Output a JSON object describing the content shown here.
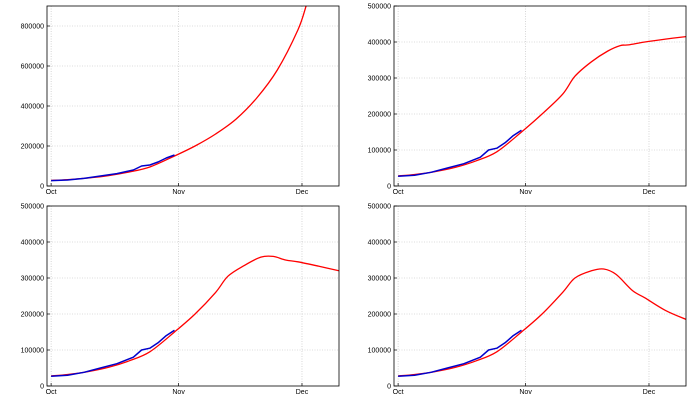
{
  "colors": {
    "model": "#ff0000",
    "observed": "#0000cc",
    "grid": "#bbbbbb",
    "frame": "#000000"
  },
  "chart_data": [
    {
      "type": "line",
      "xlim": [
        "2020-09-30",
        "2020-12-10"
      ],
      "ylim": [
        0,
        900000
      ],
      "x_ticks": [
        {
          "date": "2020-10-01",
          "label": "Oct"
        },
        {
          "date": "2020-11-01",
          "label": "Nov"
        },
        {
          "date": "2020-12-01",
          "label": "Dec"
        }
      ],
      "y_ticks": [
        {
          "value": 0,
          "label": "0"
        },
        {
          "value": 200000,
          "label": "200000"
        },
        {
          "value": 400000,
          "label": "400000"
        },
        {
          "value": 600000,
          "label": "600000"
        },
        {
          "value": 800000,
          "label": "800000"
        }
      ],
      "grid": true,
      "series": [
        {
          "role": "model",
          "x": [
            "2020-10-01",
            "2020-10-05",
            "2020-10-10",
            "2020-10-15",
            "2020-10-20",
            "2020-10-25",
            "2020-10-31",
            "2020-11-05",
            "2020-11-10",
            "2020-11-15",
            "2020-11-20",
            "2020-11-25",
            "2020-11-30",
            "2020-12-02"
          ],
          "y": [
            28000,
            32000,
            40000,
            52000,
            70000,
            95000,
            150000,
            200000,
            260000,
            335000,
            440000,
            580000,
            780000,
            900000
          ]
        },
        {
          "role": "observed",
          "x": [
            "2020-10-01",
            "2020-10-05",
            "2020-10-09",
            "2020-10-13",
            "2020-10-17",
            "2020-10-21",
            "2020-10-23",
            "2020-10-25",
            "2020-10-27",
            "2020-10-29",
            "2020-10-31"
          ],
          "y": [
            27000,
            30000,
            38000,
            50000,
            62000,
            80000,
            100000,
            105000,
            120000,
            140000,
            155000
          ]
        }
      ]
    },
    {
      "type": "line",
      "xlim": [
        "2020-09-30",
        "2020-12-10"
      ],
      "ylim": [
        0,
        500000
      ],
      "x_ticks": [
        {
          "date": "2020-10-01",
          "label": "Oct"
        },
        {
          "date": "2020-11-01",
          "label": "Nov"
        },
        {
          "date": "2020-12-01",
          "label": "Dec"
        }
      ],
      "y_ticks": [
        {
          "value": 0,
          "label": "0"
        },
        {
          "value": 100000,
          "label": "100000"
        },
        {
          "value": 200000,
          "label": "200000"
        },
        {
          "value": 300000,
          "label": "300000"
        },
        {
          "value": 400000,
          "label": "400000"
        },
        {
          "value": 500000,
          "label": "500000"
        }
      ],
      "grid": true,
      "series": [
        {
          "role": "model",
          "x": [
            "2020-10-01",
            "2020-10-05",
            "2020-10-10",
            "2020-10-15",
            "2020-10-20",
            "2020-10-25",
            "2020-10-31",
            "2020-11-05",
            "2020-11-10",
            "2020-11-13",
            "2020-11-17",
            "2020-11-21",
            "2020-11-24",
            "2020-11-26",
            "2020-11-30",
            "2020-12-05",
            "2020-12-10"
          ],
          "y": [
            28000,
            32000,
            40000,
            52000,
            70000,
            95000,
            150000,
            200000,
            255000,
            305000,
            345000,
            375000,
            390000,
            392000,
            400000,
            408000,
            415000
          ]
        },
        {
          "role": "observed",
          "x": [
            "2020-10-01",
            "2020-10-05",
            "2020-10-09",
            "2020-10-13",
            "2020-10-17",
            "2020-10-21",
            "2020-10-23",
            "2020-10-25",
            "2020-10-27",
            "2020-10-29",
            "2020-10-31"
          ],
          "y": [
            27000,
            30000,
            38000,
            50000,
            62000,
            80000,
            100000,
            105000,
            120000,
            140000,
            155000
          ]
        }
      ]
    },
    {
      "type": "line",
      "xlim": [
        "2020-09-30",
        "2020-12-10"
      ],
      "ylim": [
        0,
        500000
      ],
      "x_ticks": [
        {
          "date": "2020-10-01",
          "label": "Oct"
        },
        {
          "date": "2020-11-01",
          "label": "Nov"
        },
        {
          "date": "2020-12-01",
          "label": "Dec"
        }
      ],
      "y_ticks": [
        {
          "value": 0,
          "label": "0"
        },
        {
          "value": 100000,
          "label": "100000"
        },
        {
          "value": 200000,
          "label": "200000"
        },
        {
          "value": 300000,
          "label": "300000"
        },
        {
          "value": 400000,
          "label": "400000"
        },
        {
          "value": 500000,
          "label": "500000"
        }
      ],
      "grid": true,
      "series": [
        {
          "role": "model",
          "x": [
            "2020-10-01",
            "2020-10-05",
            "2020-10-10",
            "2020-10-15",
            "2020-10-20",
            "2020-10-25",
            "2020-10-31",
            "2020-11-05",
            "2020-11-10",
            "2020-11-13",
            "2020-11-17",
            "2020-11-21",
            "2020-11-24",
            "2020-11-27",
            "2020-11-30",
            "2020-12-05",
            "2020-12-10"
          ],
          "y": [
            28000,
            32000,
            40000,
            52000,
            70000,
            95000,
            150000,
            200000,
            260000,
            305000,
            335000,
            358000,
            360000,
            350000,
            345000,
            333000,
            320000
          ]
        },
        {
          "role": "observed",
          "x": [
            "2020-10-01",
            "2020-10-05",
            "2020-10-09",
            "2020-10-13",
            "2020-10-17",
            "2020-10-21",
            "2020-10-23",
            "2020-10-25",
            "2020-10-27",
            "2020-10-29",
            "2020-10-31"
          ],
          "y": [
            27000,
            30000,
            38000,
            50000,
            62000,
            80000,
            100000,
            105000,
            120000,
            140000,
            155000
          ]
        }
      ]
    },
    {
      "type": "line",
      "xlim": [
        "2020-09-30",
        "2020-12-10"
      ],
      "ylim": [
        0,
        500000
      ],
      "x_ticks": [
        {
          "date": "2020-10-01",
          "label": "Oct"
        },
        {
          "date": "2020-11-01",
          "label": "Nov"
        },
        {
          "date": "2020-12-01",
          "label": "Dec"
        }
      ],
      "y_ticks": [
        {
          "value": 0,
          "label": "0"
        },
        {
          "value": 100000,
          "label": "100000"
        },
        {
          "value": 200000,
          "label": "200000"
        },
        {
          "value": 300000,
          "label": "300000"
        },
        {
          "value": 400000,
          "label": "400000"
        },
        {
          "value": 500000,
          "label": "500000"
        }
      ],
      "grid": true,
      "series": [
        {
          "role": "model",
          "x": [
            "2020-10-01",
            "2020-10-05",
            "2020-10-10",
            "2020-10-15",
            "2020-10-20",
            "2020-10-25",
            "2020-10-31",
            "2020-11-05",
            "2020-11-10",
            "2020-11-13",
            "2020-11-17",
            "2020-11-20",
            "2020-11-23",
            "2020-11-27",
            "2020-11-30",
            "2020-12-05",
            "2020-12-10"
          ],
          "y": [
            28000,
            32000,
            40000,
            52000,
            70000,
            95000,
            150000,
            200000,
            260000,
            300000,
            320000,
            325000,
            310000,
            265000,
            245000,
            210000,
            185000
          ]
        },
        {
          "role": "observed",
          "x": [
            "2020-10-01",
            "2020-10-05",
            "2020-10-09",
            "2020-10-13",
            "2020-10-17",
            "2020-10-21",
            "2020-10-23",
            "2020-10-25",
            "2020-10-27",
            "2020-10-29",
            "2020-10-31"
          ],
          "y": [
            27000,
            30000,
            38000,
            50000,
            62000,
            80000,
            100000,
            105000,
            120000,
            140000,
            155000
          ]
        }
      ]
    }
  ]
}
